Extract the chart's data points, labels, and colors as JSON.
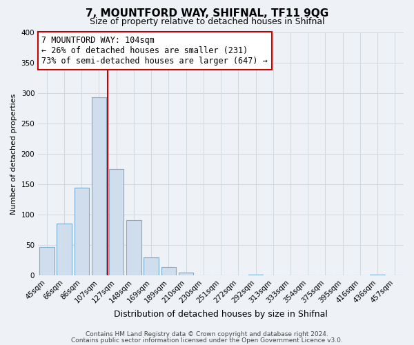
{
  "title": "7, MOUNTFORD WAY, SHIFNAL, TF11 9QG",
  "subtitle": "Size of property relative to detached houses in Shifnal",
  "xlabel": "Distribution of detached houses by size in Shifnal",
  "ylabel": "Number of detached properties",
  "bar_labels": [
    "45sqm",
    "66sqm",
    "86sqm",
    "107sqm",
    "127sqm",
    "148sqm",
    "169sqm",
    "189sqm",
    "210sqm",
    "230sqm",
    "251sqm",
    "272sqm",
    "292sqm",
    "313sqm",
    "333sqm",
    "354sqm",
    "375sqm",
    "395sqm",
    "416sqm",
    "436sqm",
    "457sqm"
  ],
  "bar_values": [
    47,
    86,
    144,
    293,
    175,
    91,
    30,
    14,
    5,
    0,
    0,
    0,
    2,
    0,
    0,
    0,
    0,
    0,
    0,
    2,
    0
  ],
  "bar_color": "#cfdded",
  "bar_edge_color": "#7aadcc",
  "grid_color": "#d0d8e0",
  "vline_color": "#cc0000",
  "vline_position": 3.5,
  "annotation_title": "7 MOUNTFORD WAY: 104sqm",
  "annotation_line1": "← 26% of detached houses are smaller (231)",
  "annotation_line2": "73% of semi-detached houses are larger (647) →",
  "annotation_box_facecolor": "#ffffff",
  "annotation_box_edgecolor": "#cc0000",
  "ylim": [
    0,
    400
  ],
  "yticks": [
    0,
    50,
    100,
    150,
    200,
    250,
    300,
    350,
    400
  ],
  "footer1": "Contains HM Land Registry data © Crown copyright and database right 2024.",
  "footer2": "Contains public sector information licensed under the Open Government Licence v3.0.",
  "title_fontsize": 11,
  "subtitle_fontsize": 9,
  "xlabel_fontsize": 9,
  "ylabel_fontsize": 8,
  "tick_fontsize": 7.5,
  "annotation_fontsize": 8.5,
  "footer_fontsize": 6.5,
  "bg_color": "#eef2f6"
}
